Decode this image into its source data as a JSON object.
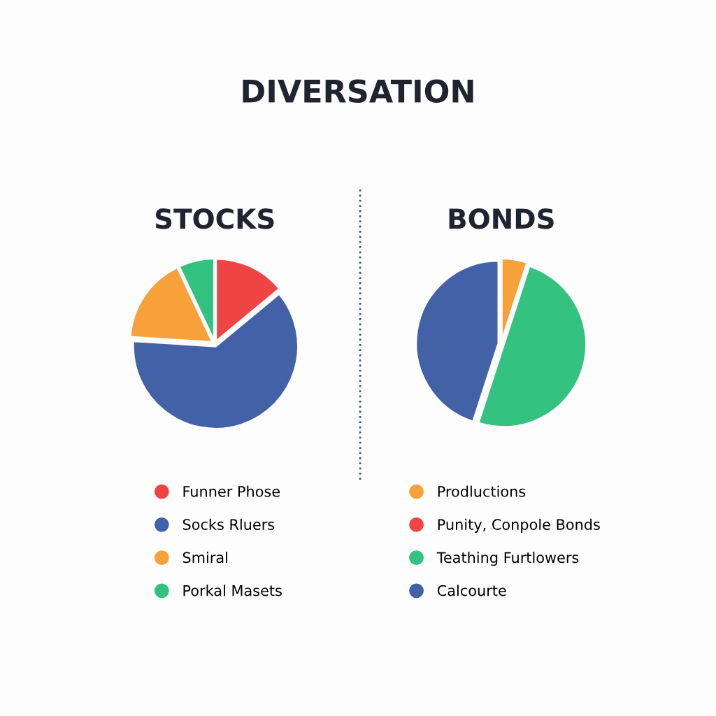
{
  "chart_data": [
    {
      "type": "pie",
      "title": "DIVERSATION",
      "subtitle": "STOCKS",
      "legend": "bottom",
      "categories": [
        "Funner Phose",
        "Socks Rluers",
        "Smiral",
        "Porkal Masets"
      ],
      "values": [
        14,
        62,
        17,
        7
      ],
      "colors": [
        "#ef4444",
        "#4361a6",
        "#f8a03a",
        "#34c281"
      ]
    },
    {
      "type": "pie",
      "subtitle": "BONDS",
      "legend": "bottom",
      "categories": [
        "Prodluctions",
        "Punity, Conpole Bonds",
        "Teathing Furtlowers",
        "Calcourte"
      ],
      "values": [
        5,
        0,
        50,
        45
      ],
      "colors": [
        "#f8a03a",
        "#ef4444",
        "#34c281",
        "#4361a6"
      ]
    }
  ]
}
